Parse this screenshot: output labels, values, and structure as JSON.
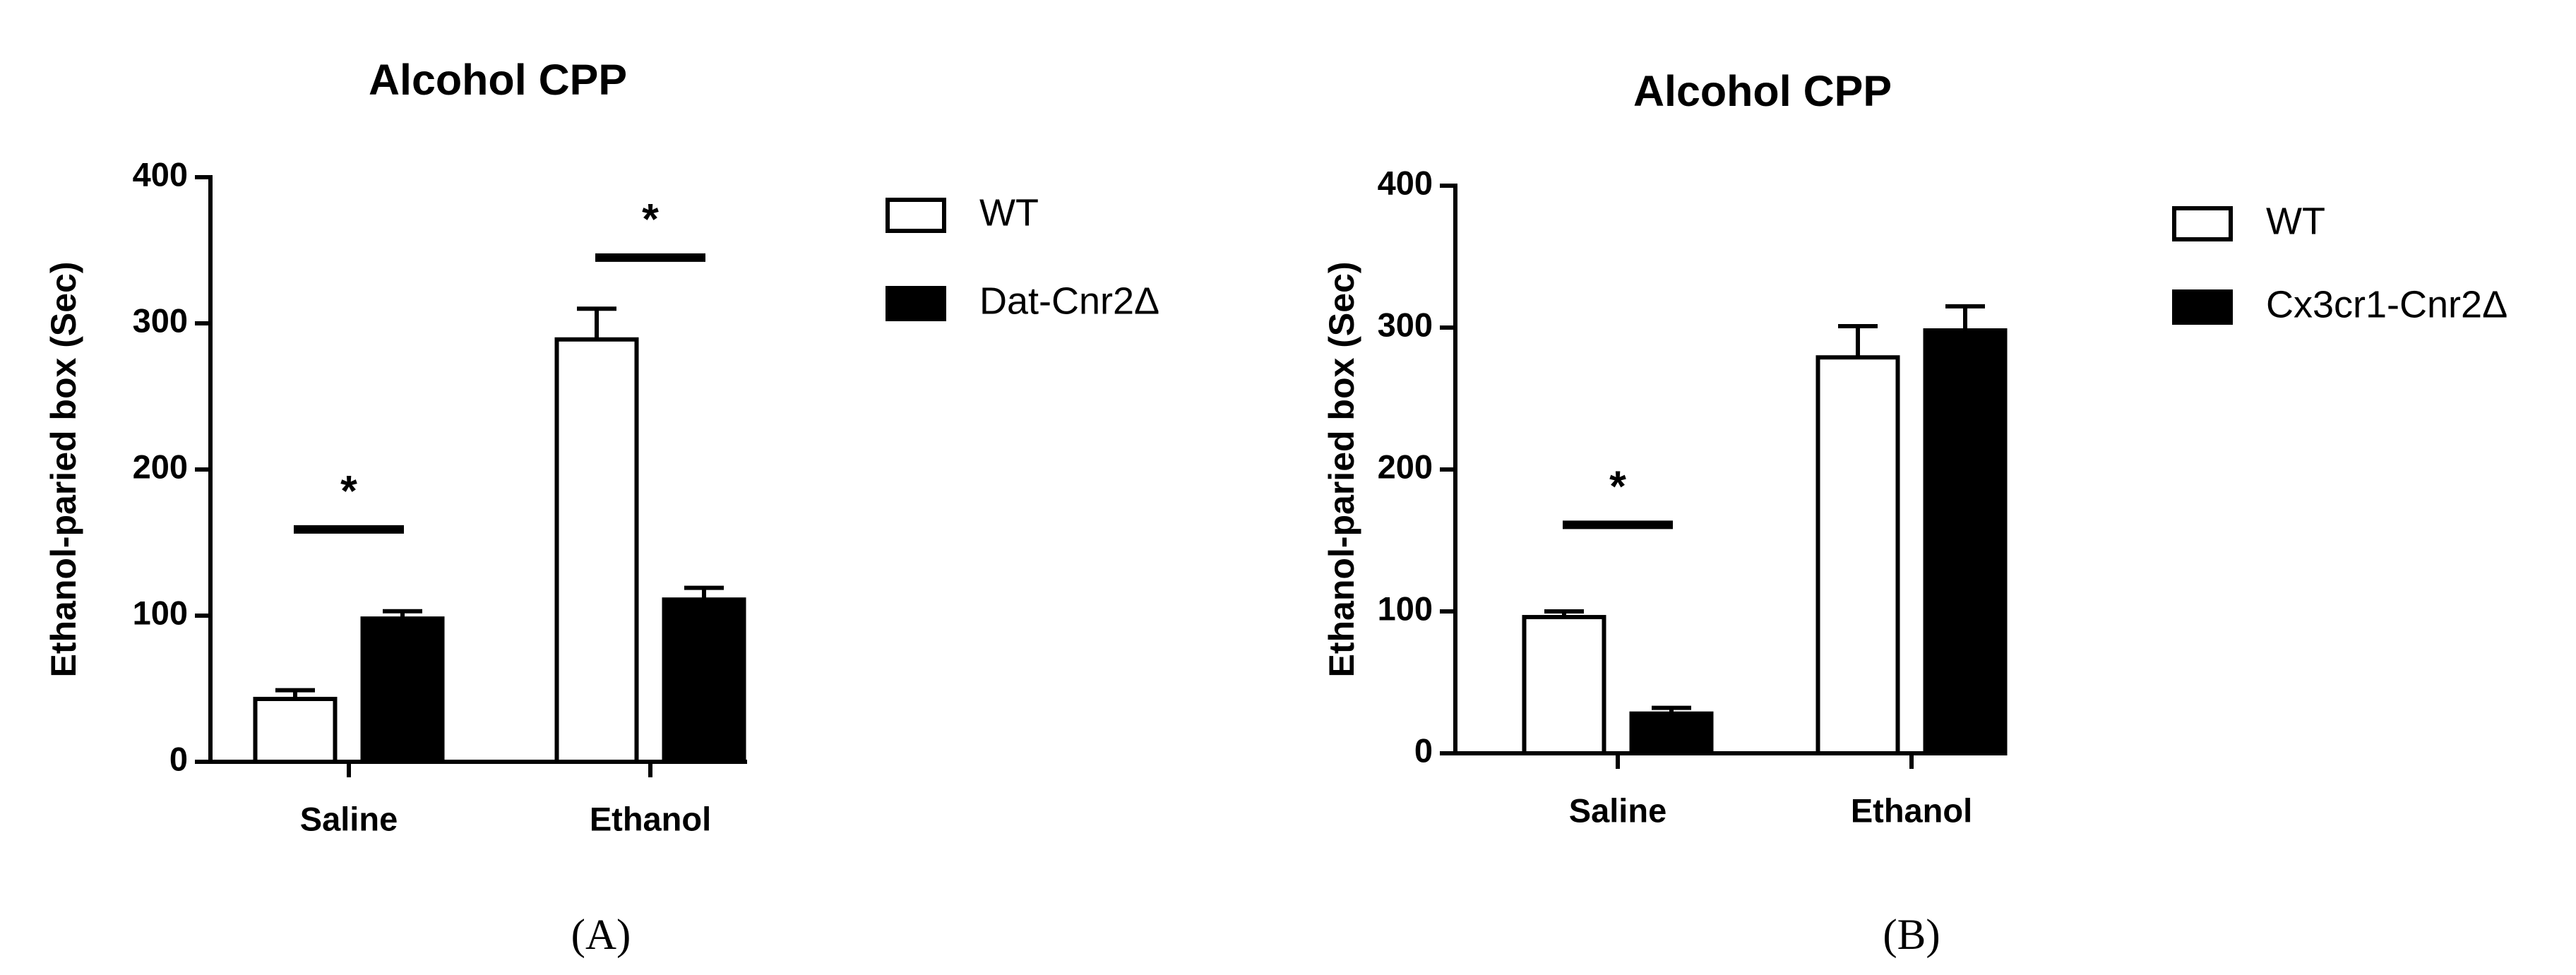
{
  "chart_data": [
    {
      "type": "bar",
      "title": "Alcohol CPP",
      "y_label": "Ethanol-paried box (Sec)",
      "panel_label": "(A)",
      "categories": [
        "Saline",
        "Ethanol"
      ],
      "series": [
        {
          "name": "WT",
          "color": "#ffffff",
          "values": [
            43,
            289
          ],
          "errors": [
            6,
            21
          ]
        },
        {
          "name": "Dat-Cnr2Δ",
          "color": "#000000",
          "values": [
            98,
            111
          ],
          "errors": [
            5,
            8
          ]
        }
      ],
      "ylim": [
        0,
        400
      ],
      "yticks": [
        0,
        100,
        200,
        300,
        400
      ],
      "significance": [
        {
          "label": "*",
          "category": "Saline",
          "y": 159
        },
        {
          "label": "*",
          "category": "Ethanol",
          "y": 345
        }
      ]
    },
    {
      "type": "bar",
      "title": "Alcohol CPP",
      "y_label": "Ethanol-paried box (Sec)",
      "panel_label": "(B)",
      "categories": [
        "Saline",
        "Ethanol"
      ],
      "series": [
        {
          "name": "WT",
          "color": "#ffffff",
          "values": [
            96,
            279
          ],
          "errors": [
            4,
            22
          ]
        },
        {
          "name": "Cx3cr1-Cnr2Δ",
          "color": "#000000",
          "values": [
            28,
            298
          ],
          "errors": [
            4,
            17
          ]
        }
      ],
      "ylim": [
        0,
        400
      ],
      "yticks": [
        0,
        100,
        200,
        300,
        400
      ],
      "significance": [
        {
          "label": "*",
          "category": "Saline",
          "y": 161
        }
      ]
    }
  ]
}
